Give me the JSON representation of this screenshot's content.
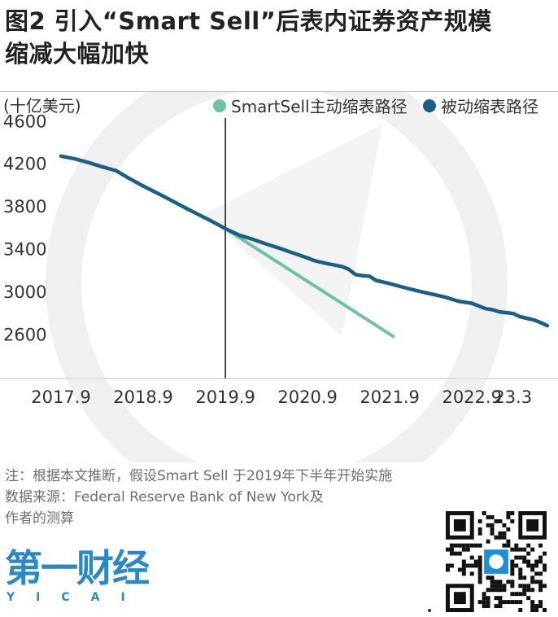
{
  "title": {
    "line1": "图2 引入“Smart Sell”后表内证券资产规模",
    "line2": "缩减大幅加快"
  },
  "chart_data": {
    "type": "line",
    "ylabel": "(十亿美元)",
    "ylim": [
      2300,
      4650
    ],
    "y_ticks": [
      2600,
      3000,
      3400,
      3800,
      4200,
      4600
    ],
    "y_tick_labels": [
      "2600",
      "3000",
      "3400",
      "3800",
      "4200",
      "4600"
    ],
    "x_tick_labels": [
      "2017.9",
      "2018.9",
      "2019.9",
      "2020.9",
      "2021.9",
      "2022.9",
      "23.3"
    ],
    "x_tick_positions": [
      0,
      12,
      24,
      36,
      48,
      60,
      66
    ],
    "legend_position": "top-right",
    "vertical_marker_x": 24,
    "series": [
      {
        "name": "SmartSell主动缩表路径",
        "color": "#6cc4a4",
        "x": [
          24,
          48.5
        ],
        "y": [
          3580,
          2570
        ]
      },
      {
        "name": "被动缩表路径",
        "color": "#1a5e8a",
        "x": [
          0,
          2,
          4,
          6,
          8,
          10,
          12,
          14,
          16,
          18,
          20,
          22,
          24,
          26,
          28,
          30,
          32,
          34,
          36,
          37,
          38,
          39,
          40,
          41,
          42,
          43,
          44,
          45,
          46,
          48,
          50,
          52,
          54,
          56,
          58,
          60,
          62,
          63,
          64,
          66,
          67,
          68,
          69,
          70,
          71
        ],
        "y": [
          4260,
          4235,
          4200,
          4160,
          4125,
          4050,
          3980,
          3915,
          3850,
          3780,
          3715,
          3650,
          3580,
          3520,
          3480,
          3435,
          3395,
          3350,
          3305,
          3280,
          3265,
          3250,
          3238,
          3225,
          3200,
          3150,
          3140,
          3135,
          3095,
          3065,
          3030,
          2998,
          2968,
          2940,
          2900,
          2880,
          2830,
          2820,
          2800,
          2785,
          2755,
          2740,
          2725,
          2700,
          2670
        ]
      }
    ]
  },
  "footnote": {
    "line1": "注：根据本文推断，假设Smart Sell 于2019年下半年开始实施",
    "line2": "数据来源：Federal Reserve Bank of New York及",
    "line3": "作者的测算"
  },
  "brand": {
    "logo_text": "第一财经",
    "logo_sub": "YICAI",
    "color": "#2b88c8"
  }
}
